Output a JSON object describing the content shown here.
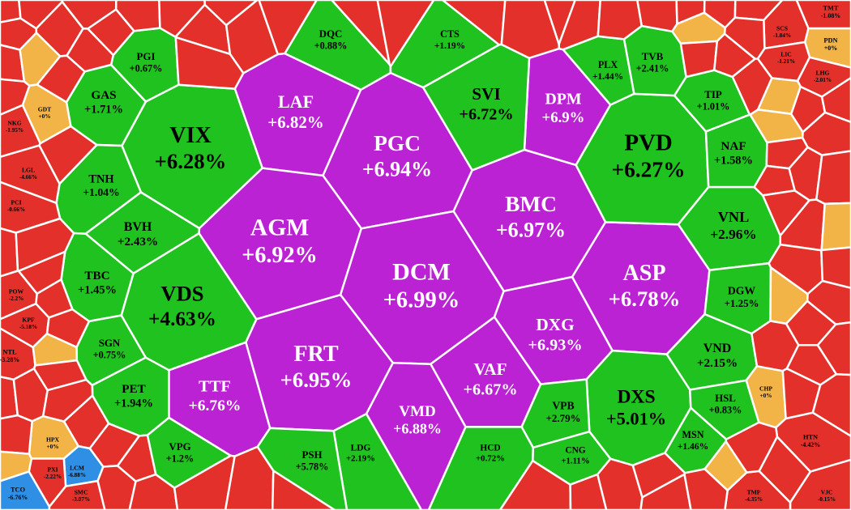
{
  "cells": [
    {
      "ticker": "LAF",
      "change": "+6.82%"
    },
    {
      "ticker": "PGC",
      "change": "+6.94%"
    },
    {
      "ticker": "DPM",
      "change": "+6.9%"
    },
    {
      "ticker": "AGM",
      "change": "+6.92%"
    },
    {
      "ticker": "BMC",
      "change": "+6.97%"
    },
    {
      "ticker": "DCM",
      "change": "+6.99%"
    },
    {
      "ticker": "ASP",
      "change": "+6.78%"
    },
    {
      "ticker": "FRT",
      "change": "+6.95%"
    },
    {
      "ticker": "DXG",
      "change": "+6.93%"
    },
    {
      "ticker": "VAF",
      "change": "+6.67%"
    },
    {
      "ticker": "TTF",
      "change": "+6.76%"
    },
    {
      "ticker": "VMD",
      "change": "+6.88%"
    },
    {
      "ticker": "VIX",
      "change": "+6.28%"
    },
    {
      "ticker": "PVD",
      "change": "+6.27%"
    },
    {
      "ticker": "VDS",
      "change": "+4.63%"
    },
    {
      "ticker": "DXS",
      "change": "+5.01%"
    },
    {
      "ticker": "SVI",
      "change": "+6.72%"
    },
    {
      "ticker": "GAS",
      "change": "+1.71%"
    },
    {
      "ticker": "PGI",
      "change": "+0.67%"
    },
    {
      "ticker": "TNH",
      "change": "+1.04%"
    },
    {
      "ticker": "BVH",
      "change": "+2.43%"
    },
    {
      "ticker": "TBC",
      "change": "+1.45%"
    },
    {
      "ticker": "SGN",
      "change": "+0.75%"
    },
    {
      "ticker": "PET",
      "change": "+1.94%"
    },
    {
      "ticker": "VPG",
      "change": "+1.2%"
    },
    {
      "ticker": "NAF",
      "change": "+1.58%"
    },
    {
      "ticker": "VNL",
      "change": "+2.96%"
    },
    {
      "ticker": "DGW",
      "change": "+1.25%"
    },
    {
      "ticker": "VND",
      "change": "+2.15%"
    },
    {
      "ticker": "HSL",
      "change": "+0.83%"
    },
    {
      "ticker": "MSN",
      "change": "+1.46%"
    },
    {
      "ticker": "TIP",
      "change": "+1.01%"
    },
    {
      "ticker": "TVB",
      "change": "+2.41%"
    },
    {
      "ticker": "PLX",
      "change": "+1.44%"
    },
    {
      "ticker": "VPB",
      "change": "+2.79%"
    },
    {
      "ticker": "CNG",
      "change": "+1.11%"
    },
    {
      "ticker": "HCD",
      "change": "+0.72%"
    },
    {
      "ticker": "LDG",
      "change": "+2.19%"
    },
    {
      "ticker": "PSH",
      "change": "+5.78%"
    },
    {
      "ticker": "DQC",
      "change": "+0.88%"
    },
    {
      "ticker": "CTS",
      "change": "+1.19%"
    },
    {
      "ticker": "TCO",
      "change": "-6.76%"
    },
    {
      "ticker": "LCM",
      "change": "-6.88%"
    },
    {
      "ticker": "PDN",
      "change": "+0%"
    },
    {
      "ticker": "CHP",
      "change": "+0%"
    },
    {
      "ticker": "HPX",
      "change": "+0%"
    },
    {
      "ticker": "GDT",
      "change": "+0%"
    },
    {
      "ticker": "TMT",
      "change": "-1.08%"
    },
    {
      "ticker": "SCS",
      "change": "-1.84%"
    },
    {
      "ticker": "LIC",
      "change": "-1.21%"
    },
    {
      "ticker": "LHG",
      "change": "-2.01%"
    },
    {
      "ticker": "NTL",
      "change": "-3.28%"
    },
    {
      "ticker": "POW",
      "change": "-2.2%"
    },
    {
      "ticker": "KPF",
      "change": "-5.18%"
    },
    {
      "ticker": "PCI",
      "change": "-0.66%"
    },
    {
      "ticker": "LGL",
      "change": "-4.66%"
    },
    {
      "ticker": "NKG",
      "change": "-1.95%"
    },
    {
      "ticker": "HTN",
      "change": "-4.42%"
    },
    {
      "ticker": "VJC",
      "change": "-0.15%"
    },
    {
      "ticker": "TMP",
      "change": "-4.35%"
    },
    {
      "ticker": "PXI",
      "change": "-2.22%"
    },
    {
      "ticker": "SMC",
      "change": "-3.07%"
    }
  ]
}
